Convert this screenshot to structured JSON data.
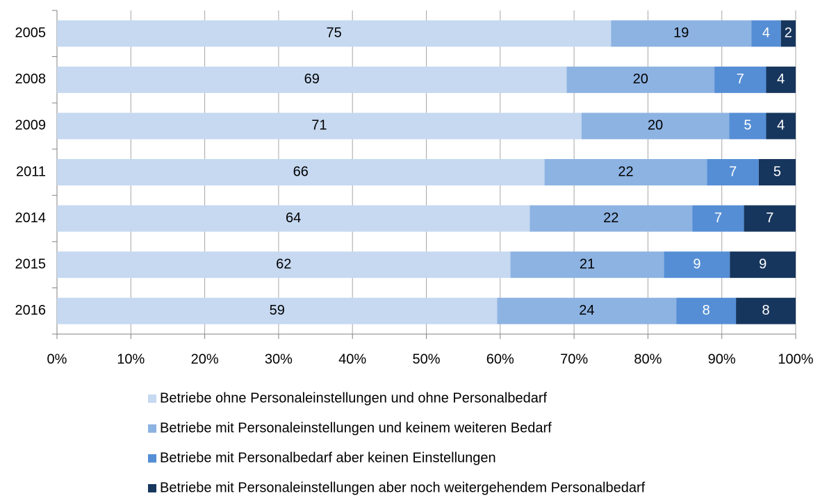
{
  "chart_data": {
    "type": "bar",
    "orientation": "horizontal",
    "stacking": "percent",
    "categories": [
      "2005",
      "2008",
      "2009",
      "2011",
      "2014",
      "2015",
      "2016"
    ],
    "series": [
      {
        "name": "Betriebe ohne Personaleinstellungen und ohne Personalbedarf",
        "color": "#c6d9f1",
        "label_color": "#000000",
        "values": [
          75,
          69,
          71,
          66,
          64,
          62,
          59
        ]
      },
      {
        "name": "Betriebe mit Personaleinstellungen und keinem weiteren Bedarf",
        "color": "#8db3e2",
        "label_color": "#000000",
        "values": [
          19,
          20,
          20,
          22,
          22,
          21,
          24
        ]
      },
      {
        "name": "Betriebe mit Personalbedarf aber keinen Einstellungen",
        "color": "#558ed5",
        "label_color": "#ffffff",
        "values": [
          4,
          7,
          5,
          7,
          7,
          9,
          8
        ]
      },
      {
        "name": "Betriebe mit Personaleinstellungen aber noch weitergehendem Personalbedarf",
        "color": "#17365d",
        "label_color": "#ffffff",
        "values": [
          2,
          4,
          4,
          5,
          7,
          9,
          8
        ]
      }
    ],
    "xlim": [
      0,
      100
    ],
    "xticks": [
      {
        "value": 0,
        "label": "0%"
      },
      {
        "value": 10,
        "label": "10%"
      },
      {
        "value": 20,
        "label": "20%"
      },
      {
        "value": 30,
        "label": "30%"
      },
      {
        "value": 40,
        "label": "40%"
      },
      {
        "value": 50,
        "label": "50%"
      },
      {
        "value": 60,
        "label": "60%"
      },
      {
        "value": 70,
        "label": "70%"
      },
      {
        "value": 80,
        "label": "80%"
      },
      {
        "value": 90,
        "label": "90%"
      },
      {
        "value": 100,
        "label": "100%"
      }
    ],
    "grid": true,
    "legend": "bottom"
  }
}
